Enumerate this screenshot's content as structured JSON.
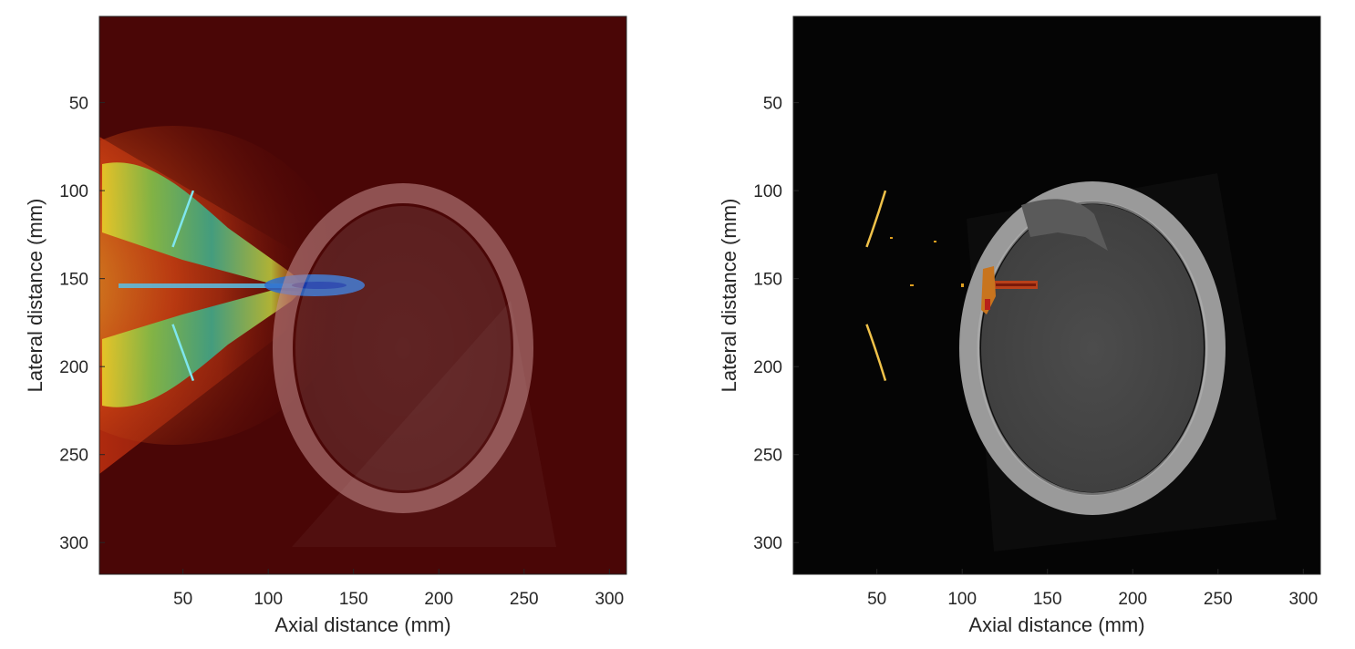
{
  "chart_data": [
    {
      "type": "heatmap",
      "title": "",
      "xlabel": "Axial distance (mm)",
      "ylabel": "Lateral distance (mm)",
      "xlim": [
        1,
        310
      ],
      "ylim": [
        1,
        318
      ],
      "y_reversed": true,
      "x_ticks": [
        50,
        100,
        150,
        200,
        250,
        300
      ],
      "y_ticks": [
        50,
        100,
        150,
        200,
        250,
        300
      ],
      "colormap": "jet overlay on CT",
      "background_color": "#4a0606",
      "transducer_arcs": [
        {
          "x": [
            56,
            50,
            44
          ],
          "y": [
            100,
            116,
            132
          ]
        },
        {
          "x": [
            44,
            50,
            56
          ],
          "y": [
            176,
            192,
            208
          ]
        }
      ],
      "focus": {
        "x": 115,
        "y": 155
      },
      "grid": false,
      "legend": "none"
    },
    {
      "type": "heatmap",
      "title": "",
      "xlabel": "Axial distance (mm)",
      "ylabel": "Lateral distance (mm)",
      "xlim": [
        1,
        310
      ],
      "ylim": [
        1,
        318
      ],
      "y_reversed": true,
      "x_ticks": [
        50,
        100,
        150,
        200,
        250,
        300
      ],
      "y_ticks": [
        50,
        100,
        150,
        200,
        250,
        300
      ],
      "colormap": "hot overlay on CT",
      "background_color": "#050505",
      "transducer_arcs": [
        {
          "x": [
            55,
            50,
            44
          ],
          "y": [
            100,
            116,
            132
          ]
        },
        {
          "x": [
            44,
            50,
            55
          ],
          "y": [
            176,
            192,
            208
          ]
        }
      ],
      "focus": {
        "x": 118,
        "y": 155
      },
      "grid": false,
      "legend": "none"
    }
  ]
}
